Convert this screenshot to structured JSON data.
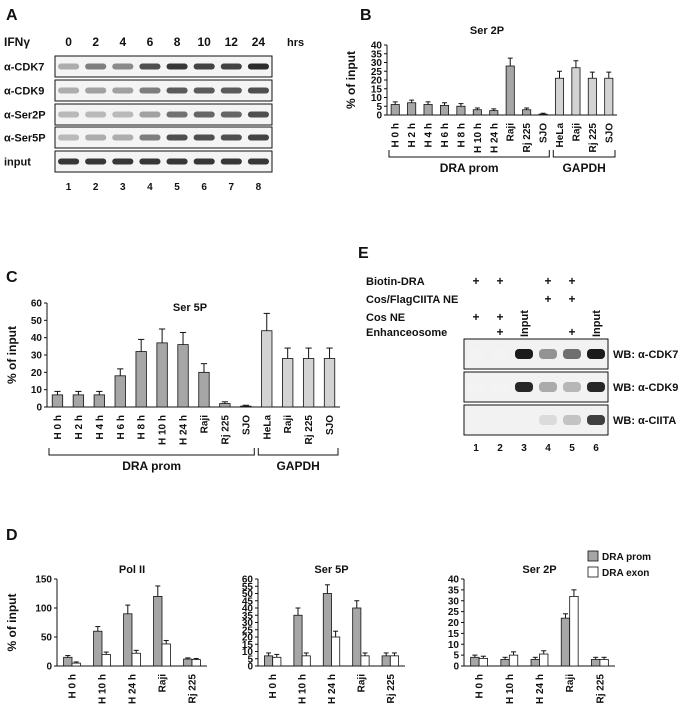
{
  "colors": {
    "dra": "#a6a6a6",
    "gapdh": "#d3d3d3",
    "exon": "#ffffff",
    "axis": "#111111"
  },
  "panelA": {
    "letter": "A",
    "treatment": "IFNγ",
    "times": [
      "0",
      "2",
      "4",
      "6",
      "8",
      "10",
      "12",
      "24"
    ],
    "unit": "hrs",
    "blots": [
      {
        "label": "α-CDK7",
        "intensity": [
          0.35,
          0.55,
          0.5,
          0.75,
          0.85,
          0.8,
          0.8,
          0.9
        ]
      },
      {
        "label": "α-CDK9",
        "intensity": [
          0.35,
          0.4,
          0.4,
          0.55,
          0.7,
          0.7,
          0.7,
          0.75
        ]
      },
      {
        "label": "α-Ser2P",
        "intensity": [
          0.3,
          0.3,
          0.3,
          0.4,
          0.6,
          0.65,
          0.65,
          0.75
        ]
      },
      {
        "label": "α-Ser5P",
        "intensity": [
          0.3,
          0.35,
          0.35,
          0.55,
          0.75,
          0.75,
          0.75,
          0.8
        ]
      },
      {
        "label": "input",
        "intensity": [
          0.85,
          0.85,
          0.85,
          0.85,
          0.85,
          0.85,
          0.85,
          0.85
        ]
      }
    ],
    "lanes": [
      "1",
      "2",
      "3",
      "4",
      "5",
      "6",
      "7",
      "8"
    ]
  },
  "panelB": {
    "letter": "B",
    "ylabel": "% of input",
    "chart_data": {
      "type": "bar",
      "title": "Ser 2P",
      "ylabel": "% of input",
      "ylim": [
        0,
        40
      ],
      "yticks": [
        "0",
        "5",
        "10",
        "15",
        "20",
        "25",
        "30",
        "35",
        "40"
      ],
      "categories": [
        "H 0 h",
        "H 2 h",
        "H 4 h",
        "H 6 h",
        "H 8 h",
        "H 10 h",
        "H 24 h",
        "Raji",
        "Rj 225",
        "SJO",
        "HeLa",
        "Raji",
        "Rj 225",
        "SJO"
      ],
      "values": [
        6,
        7,
        6,
        5.5,
        5,
        3,
        2.5,
        28,
        3,
        0.5,
        21,
        27,
        21,
        21
      ],
      "errors": [
        1.5,
        1.5,
        1.5,
        1.5,
        1.5,
        1,
        1,
        4.5,
        1,
        0.5,
        4,
        4,
        3.5,
        3.5
      ],
      "groups": [
        {
          "name": "DRA prom",
          "from": 0,
          "to": 9
        },
        {
          "name": "GAPDH",
          "from": 10,
          "to": 13
        }
      ]
    }
  },
  "panelC": {
    "letter": "C",
    "ylabel": "% of input",
    "chart_data": {
      "type": "bar",
      "title": "Ser 5P",
      "ylabel": "% of input",
      "ylim": [
        0,
        60
      ],
      "yticks": [
        "0",
        "10",
        "20",
        "30",
        "40",
        "50",
        "60"
      ],
      "categories": [
        "H 0 h",
        "H 2 h",
        "H 4 h",
        "H 6 h",
        "H 8 h",
        "H 10 h",
        "H 24 h",
        "Raji",
        "Rj 225",
        "SJO",
        "HeLa",
        "Raji",
        "Rj 225",
        "SJO"
      ],
      "values": [
        7,
        7,
        7,
        18,
        32,
        37,
        36,
        20,
        2,
        0.5,
        44,
        28,
        28,
        28
      ],
      "errors": [
        2,
        2,
        2,
        4,
        7,
        8,
        7,
        5,
        1,
        0.5,
        10,
        6,
        6,
        6
      ],
      "groups": [
        {
          "name": "DRA prom",
          "from": 0,
          "to": 9
        },
        {
          "name": "GAPDH",
          "from": 10,
          "to": 13
        }
      ]
    }
  },
  "panelE": {
    "letter": "E",
    "conditions": [
      {
        "label": "Biotin-DRA",
        "marks": [
          "+",
          "+",
          "",
          "+",
          "+",
          ""
        ]
      },
      {
        "label": "Cos/FlagCIITA NE",
        "marks": [
          "",
          "",
          "",
          "+",
          "+",
          ""
        ]
      },
      {
        "label": "Cos NE",
        "marks": [
          "+",
          "+",
          "",
          "",
          "",
          ""
        ]
      },
      {
        "label": "Enhanceosome",
        "marks": [
          "",
          "+",
          "",
          "",
          "+",
          ""
        ]
      }
    ],
    "input_label": "Input",
    "blots": [
      {
        "label": "WB: α-CDK7",
        "intensity": [
          0.05,
          0.05,
          0.95,
          0.45,
          0.6,
          0.95
        ]
      },
      {
        "label": "WB: α-CDK9",
        "intensity": [
          0.05,
          0.05,
          0.9,
          0.35,
          0.3,
          0.9
        ]
      },
      {
        "label": "WB: α-CIITA",
        "intensity": [
          0.0,
          0.0,
          0.0,
          0.15,
          0.25,
          0.8
        ]
      }
    ],
    "lanes": [
      "1",
      "2",
      "3",
      "4",
      "5",
      "6"
    ]
  },
  "panelD": {
    "letter": "D",
    "ylabel": "% of input",
    "legend": [
      {
        "name": "DRA prom",
        "color": "#a6a6a6"
      },
      {
        "name": "DRA exon",
        "color": "#ffffff"
      }
    ],
    "chart_data": [
      {
        "type": "bar",
        "title": "Pol II",
        "ylim": [
          0,
          150
        ],
        "yticks": [
          "0",
          "50",
          "100",
          "150"
        ],
        "categories": [
          "H 0 h",
          "H 10 h",
          "H 24 h",
          "Raji",
          "Rj 225"
        ],
        "series": [
          {
            "name": "DRA prom",
            "values": [
              15,
              60,
              90,
              120,
              12
            ],
            "errors": [
              3,
              8,
              15,
              18,
              2
            ]
          },
          {
            "name": "DRA exon",
            "values": [
              5,
              20,
              22,
              38,
              11
            ],
            "errors": [
              2,
              4,
              5,
              6,
              2
            ]
          }
        ]
      },
      {
        "type": "bar",
        "title": "Ser 5P",
        "ylim": [
          0,
          60
        ],
        "yticks": [
          "0",
          "5",
          "10",
          "15",
          "20",
          "25",
          "30",
          "35",
          "40",
          "45",
          "50",
          "55",
          "60"
        ],
        "categories": [
          "H 0 h",
          "H 10 h",
          "H 24 h",
          "Raji",
          "Rj 225"
        ],
        "series": [
          {
            "name": "DRA prom",
            "values": [
              7,
              35,
              50,
              40,
              7
            ],
            "errors": [
              2,
              5,
              6,
              5,
              2
            ]
          },
          {
            "name": "DRA exon",
            "values": [
              6,
              7,
              20,
              7,
              7
            ],
            "errors": [
              2,
              2,
              4,
              2,
              2
            ]
          }
        ]
      },
      {
        "type": "bar",
        "title": "Ser 2P",
        "ylim": [
          0,
          40
        ],
        "yticks": [
          "0",
          "5",
          "10",
          "15",
          "20",
          "25",
          "30",
          "35",
          "40"
        ],
        "categories": [
          "H 0 h",
          "H 10 h",
          "H 24 h",
          "Raji",
          "Rj 225"
        ],
        "series": [
          {
            "name": "DRA prom",
            "values": [
              4,
              3,
              3,
              22,
              3
            ],
            "errors": [
              1,
              1,
              1,
              2,
              1
            ]
          },
          {
            "name": "DRA exon",
            "values": [
              3.5,
              5,
              5.5,
              32,
              3
            ],
            "errors": [
              1,
              1.5,
              1.5,
              3,
              1
            ]
          }
        ]
      }
    ]
  }
}
